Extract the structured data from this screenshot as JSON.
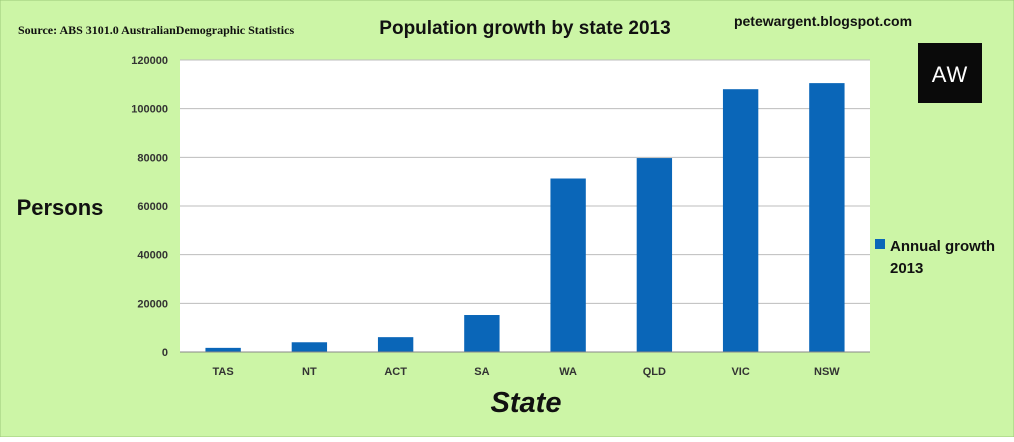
{
  "header": {
    "source": "Source: ABS 3101.0 AustralianDemographic Statistics",
    "blog": "petewargent.blogspot.com",
    "logo_text": "AW"
  },
  "colors": {
    "background": "#ccf5a6",
    "plot_area": "#ffffff",
    "bar": "#0a66b8",
    "logo_bg": "#0a0a0a"
  },
  "chart_data": {
    "type": "bar",
    "title": "Population growth by state 2013",
    "xlabel": "State",
    "ylabel": "Persons",
    "categories": [
      "TAS",
      "NT",
      "ACT",
      "SA",
      "WA",
      "QLD",
      "VIC",
      "NSW"
    ],
    "series": [
      {
        "name": "Annual growth 2013",
        "values": [
          1700,
          4000,
          6100,
          15200,
          71300,
          79700,
          108000,
          110500
        ]
      }
    ],
    "ylim": [
      0,
      120000
    ],
    "yticks": [
      0,
      20000,
      40000,
      60000,
      80000,
      100000,
      120000
    ],
    "grid": true,
    "legend": "right"
  }
}
